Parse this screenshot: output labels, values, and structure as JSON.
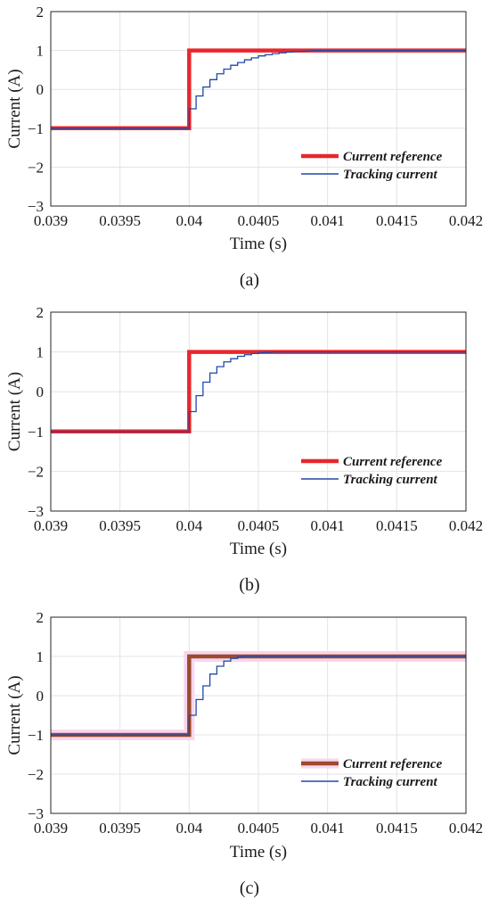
{
  "chart_data": [
    {
      "type": "line",
      "panel": "(a)",
      "caption": "(a)",
      "xlabel": "Time (s)",
      "ylabel": "Current (A)",
      "xlim": [
        0.039,
        0.042
      ],
      "ylim": [
        -3,
        2
      ],
      "xticks": [
        "0.039",
        "0.0395",
        "0.04",
        "0.0405",
        "0.041",
        "0.0415",
        "0.042"
      ],
      "yticks": [
        "−3",
        "−2",
        "−1",
        "0",
        "1",
        "2"
      ],
      "grid": true,
      "legend_position": "bottom-right",
      "series": [
        {
          "name": "Current reference",
          "color": "#e8262c",
          "style": "thick",
          "x": [
            0.039,
            0.04,
            0.04,
            0.042
          ],
          "y": [
            -1,
            -1,
            1,
            1
          ]
        },
        {
          "name": "Tracking current",
          "color": "#1f4aa8",
          "style": "thin-step",
          "x": [
            0.039,
            0.04,
            0.04005,
            0.0401,
            0.04015,
            0.0402,
            0.04025,
            0.0403,
            0.04035,
            0.0404,
            0.04045,
            0.0405,
            0.04055,
            0.0406,
            0.04065,
            0.0407,
            0.04075,
            0.0408,
            0.04085,
            0.0409,
            0.042
          ],
          "y": [
            -1,
            -0.5,
            -0.17,
            0.06,
            0.25,
            0.4,
            0.52,
            0.62,
            0.69,
            0.76,
            0.81,
            0.86,
            0.89,
            0.92,
            0.94,
            0.96,
            0.97,
            0.98,
            0.99,
            1.0,
            1.0
          ]
        }
      ]
    },
    {
      "type": "line",
      "panel": "(b)",
      "caption": "(b)",
      "xlabel": "Time (s)",
      "ylabel": "Current (A)",
      "xlim": [
        0.039,
        0.042
      ],
      "ylim": [
        -3,
        2
      ],
      "xticks": [
        "0.039",
        "0.0395",
        "0.04",
        "0.0405",
        "0.041",
        "0.0415",
        "0.042"
      ],
      "yticks": [
        "−3",
        "−2",
        "−1",
        "0",
        "1",
        "2"
      ],
      "grid": true,
      "legend_position": "bottom-right",
      "series": [
        {
          "name": "Current reference",
          "color": "#e8262c",
          "style": "thick",
          "x": [
            0.039,
            0.04,
            0.04,
            0.042
          ],
          "y": [
            -1,
            -1,
            1,
            1
          ]
        },
        {
          "name": "Tracking current",
          "color": "#1f4aa8",
          "style": "thin-step",
          "x": [
            0.039,
            0.04,
            0.04005,
            0.0401,
            0.04015,
            0.0402,
            0.04025,
            0.0403,
            0.04035,
            0.0404,
            0.04045,
            0.0405,
            0.04055,
            0.0406,
            0.042
          ],
          "y": [
            -1,
            -0.5,
            -0.1,
            0.24,
            0.47,
            0.63,
            0.75,
            0.83,
            0.89,
            0.93,
            0.96,
            0.98,
            0.99,
            1.0,
            1.0
          ]
        }
      ]
    },
    {
      "type": "line",
      "panel": "(c)",
      "caption": "(c)",
      "xlabel": "Time (s)",
      "ylabel": "Current (A)",
      "xlim": [
        0.039,
        0.042
      ],
      "ylim": [
        -3,
        2
      ],
      "xticks": [
        "0.039",
        "0.0395",
        "0.04",
        "0.0405",
        "0.041",
        "0.0415",
        "0.042"
      ],
      "yticks": [
        "−3",
        "−2",
        "−1",
        "0",
        "1",
        "2"
      ],
      "grid": true,
      "legend_position": "bottom-right",
      "series": [
        {
          "name": "Current reference",
          "color": "#9c4a2e",
          "style": "thick",
          "x": [
            0.039,
            0.04,
            0.04,
            0.042
          ],
          "y": [
            -1,
            -1,
            1,
            1
          ]
        },
        {
          "name": "Tracking current",
          "color": "#1f4aa8",
          "style": "thin-step",
          "x": [
            0.039,
            0.04,
            0.04005,
            0.0401,
            0.04015,
            0.0402,
            0.04025,
            0.0403,
            0.04035,
            0.0404,
            0.042
          ],
          "y": [
            -1,
            -0.5,
            -0.1,
            0.25,
            0.55,
            0.75,
            0.88,
            0.95,
            0.99,
            1.0,
            1.0
          ]
        }
      ]
    }
  ]
}
